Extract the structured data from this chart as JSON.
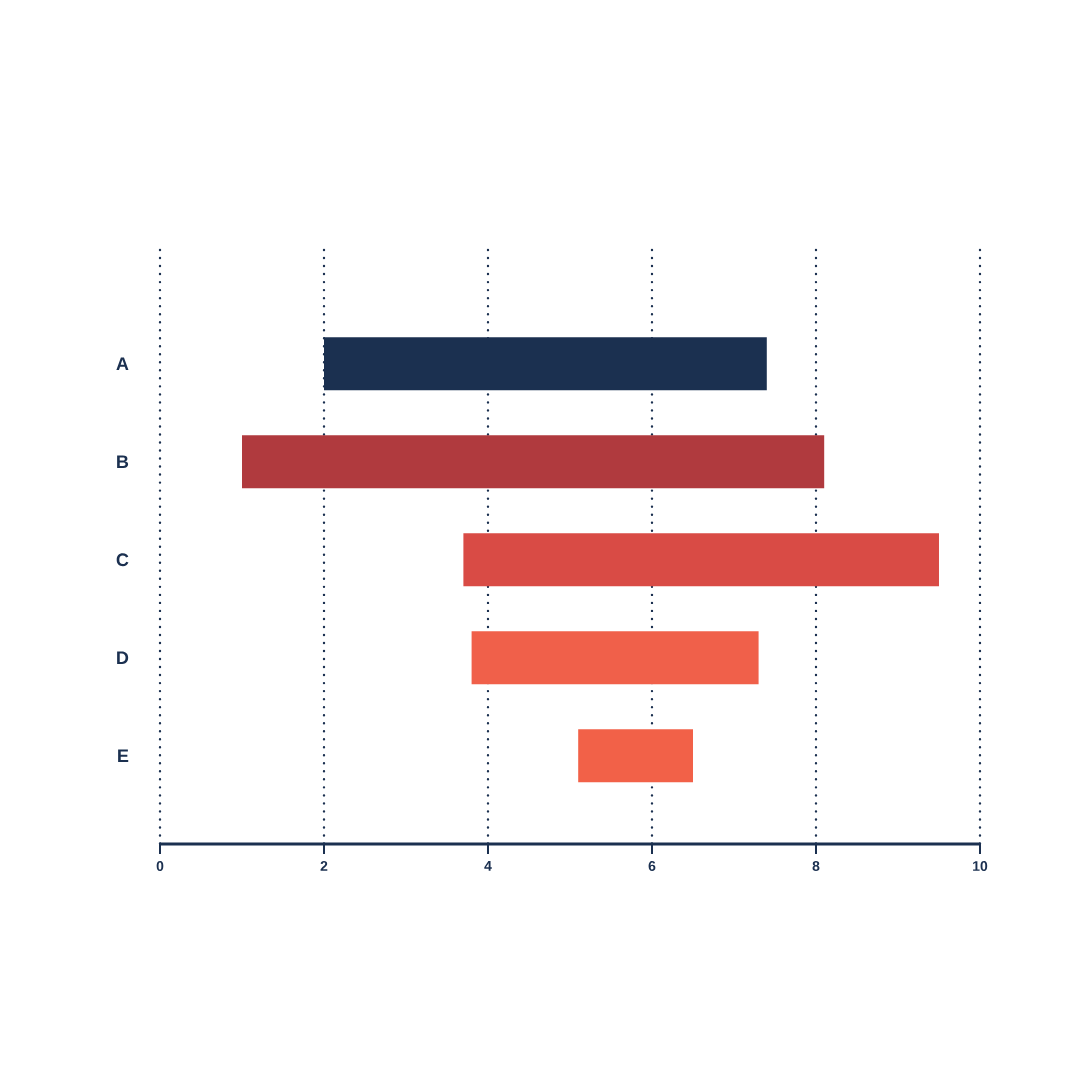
{
  "chart_data": {
    "type": "bar",
    "orientation": "horizontal",
    "categories": [
      "A",
      "B",
      "C",
      "D",
      "E"
    ],
    "base": [
      2,
      1,
      3.7,
      3.8,
      5.1
    ],
    "values": [
      5.4,
      7.1,
      5.8,
      3.5,
      1.4
    ],
    "colors": [
      "#1b3050",
      "#b03a3e",
      "#d94b45",
      "#f0604a",
      "#f26148"
    ],
    "xlim": [
      0,
      10
    ],
    "xticks": [
      0,
      2,
      4,
      6,
      8,
      10
    ],
    "grid": "x"
  }
}
